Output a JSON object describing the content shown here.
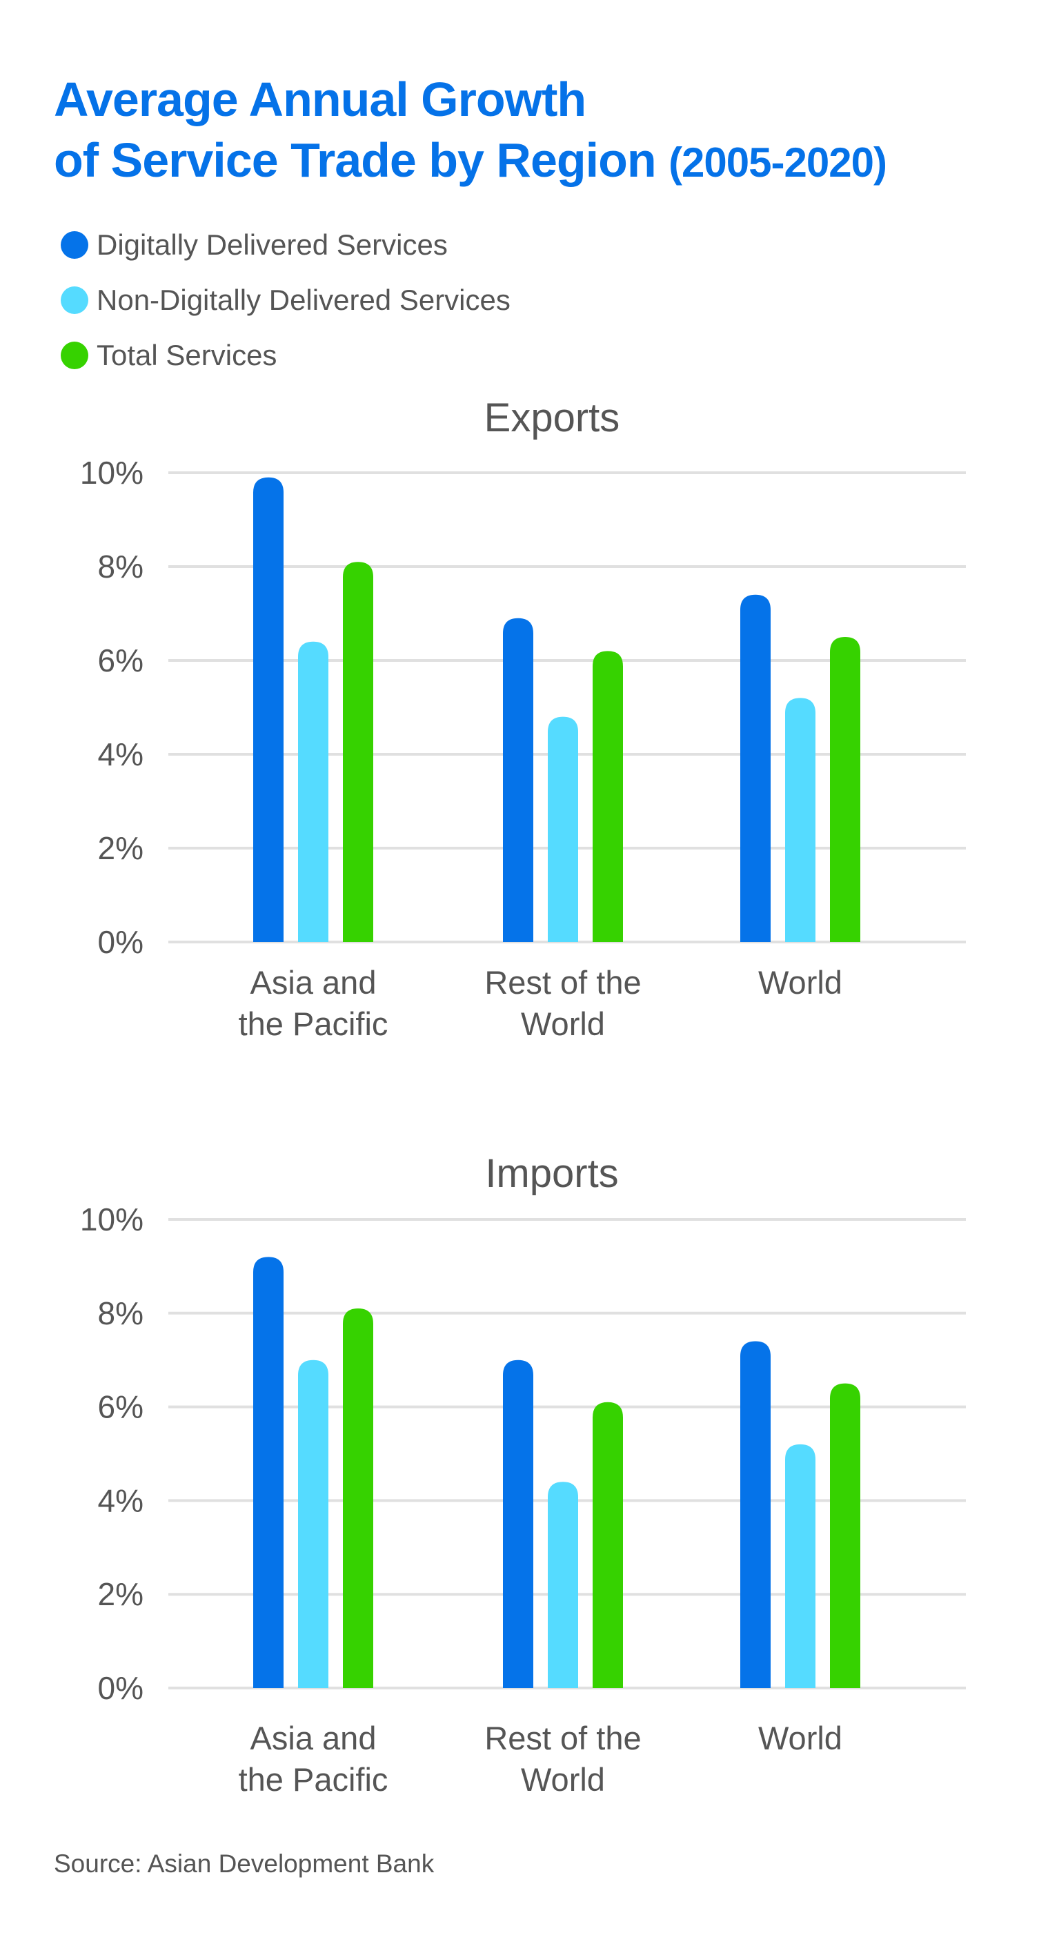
{
  "title": {
    "line1": "Average Annual Growth",
    "line2": "of Service Trade by Region",
    "period": "(2005-2020)"
  },
  "colors": {
    "title": "#0572E8",
    "text": "#555555",
    "grid": "#E0E0E0"
  },
  "legend": [
    {
      "label": "Digitally Delivered Services",
      "color": "#0573E9"
    },
    {
      "label": "Non-Digitally Delivered Services",
      "color": "#55DBFF"
    },
    {
      "label": "Total Services",
      "color": "#36D200"
    }
  ],
  "source": "Source: Asian Development Bank",
  "chart_data": [
    {
      "type": "bar",
      "title": "Exports",
      "categories": [
        "Asia and the Pacific",
        "Rest of the World",
        "World"
      ],
      "category_lines": [
        [
          "Asia and",
          "the Pacific"
        ],
        [
          "Rest of the",
          "World"
        ],
        [
          "World"
        ]
      ],
      "ylim": [
        0,
        10
      ],
      "yticks": [
        "0%",
        "2%",
        "4%",
        "6%",
        "8%",
        "10%"
      ],
      "grid": true,
      "series": [
        {
          "name": "Digitally Delivered Services",
          "values": [
            9.9,
            6.9,
            7.4
          ]
        },
        {
          "name": "Non-Digitally Delivered Services",
          "values": [
            6.4,
            4.8,
            5.2
          ]
        },
        {
          "name": "Total Services",
          "values": [
            8.1,
            6.2,
            6.5
          ]
        }
      ]
    },
    {
      "type": "bar",
      "title": "Imports",
      "categories": [
        "Asia and the Pacific",
        "Rest of the World",
        "World"
      ],
      "category_lines": [
        [
          "Asia and",
          "the Pacific"
        ],
        [
          "Rest of the",
          "World"
        ],
        [
          "World"
        ]
      ],
      "ylim": [
        0,
        10
      ],
      "yticks": [
        "0%",
        "2%",
        "4%",
        "6%",
        "8%",
        "10%"
      ],
      "grid": true,
      "series": [
        {
          "name": "Digitally Delivered Services",
          "values": [
            9.2,
            7.0,
            7.4
          ]
        },
        {
          "name": "Non-Digitally Delivered Services",
          "values": [
            7.0,
            4.4,
            5.2
          ]
        },
        {
          "name": "Total Services",
          "values": [
            8.1,
            6.1,
            6.5
          ]
        }
      ]
    }
  ]
}
